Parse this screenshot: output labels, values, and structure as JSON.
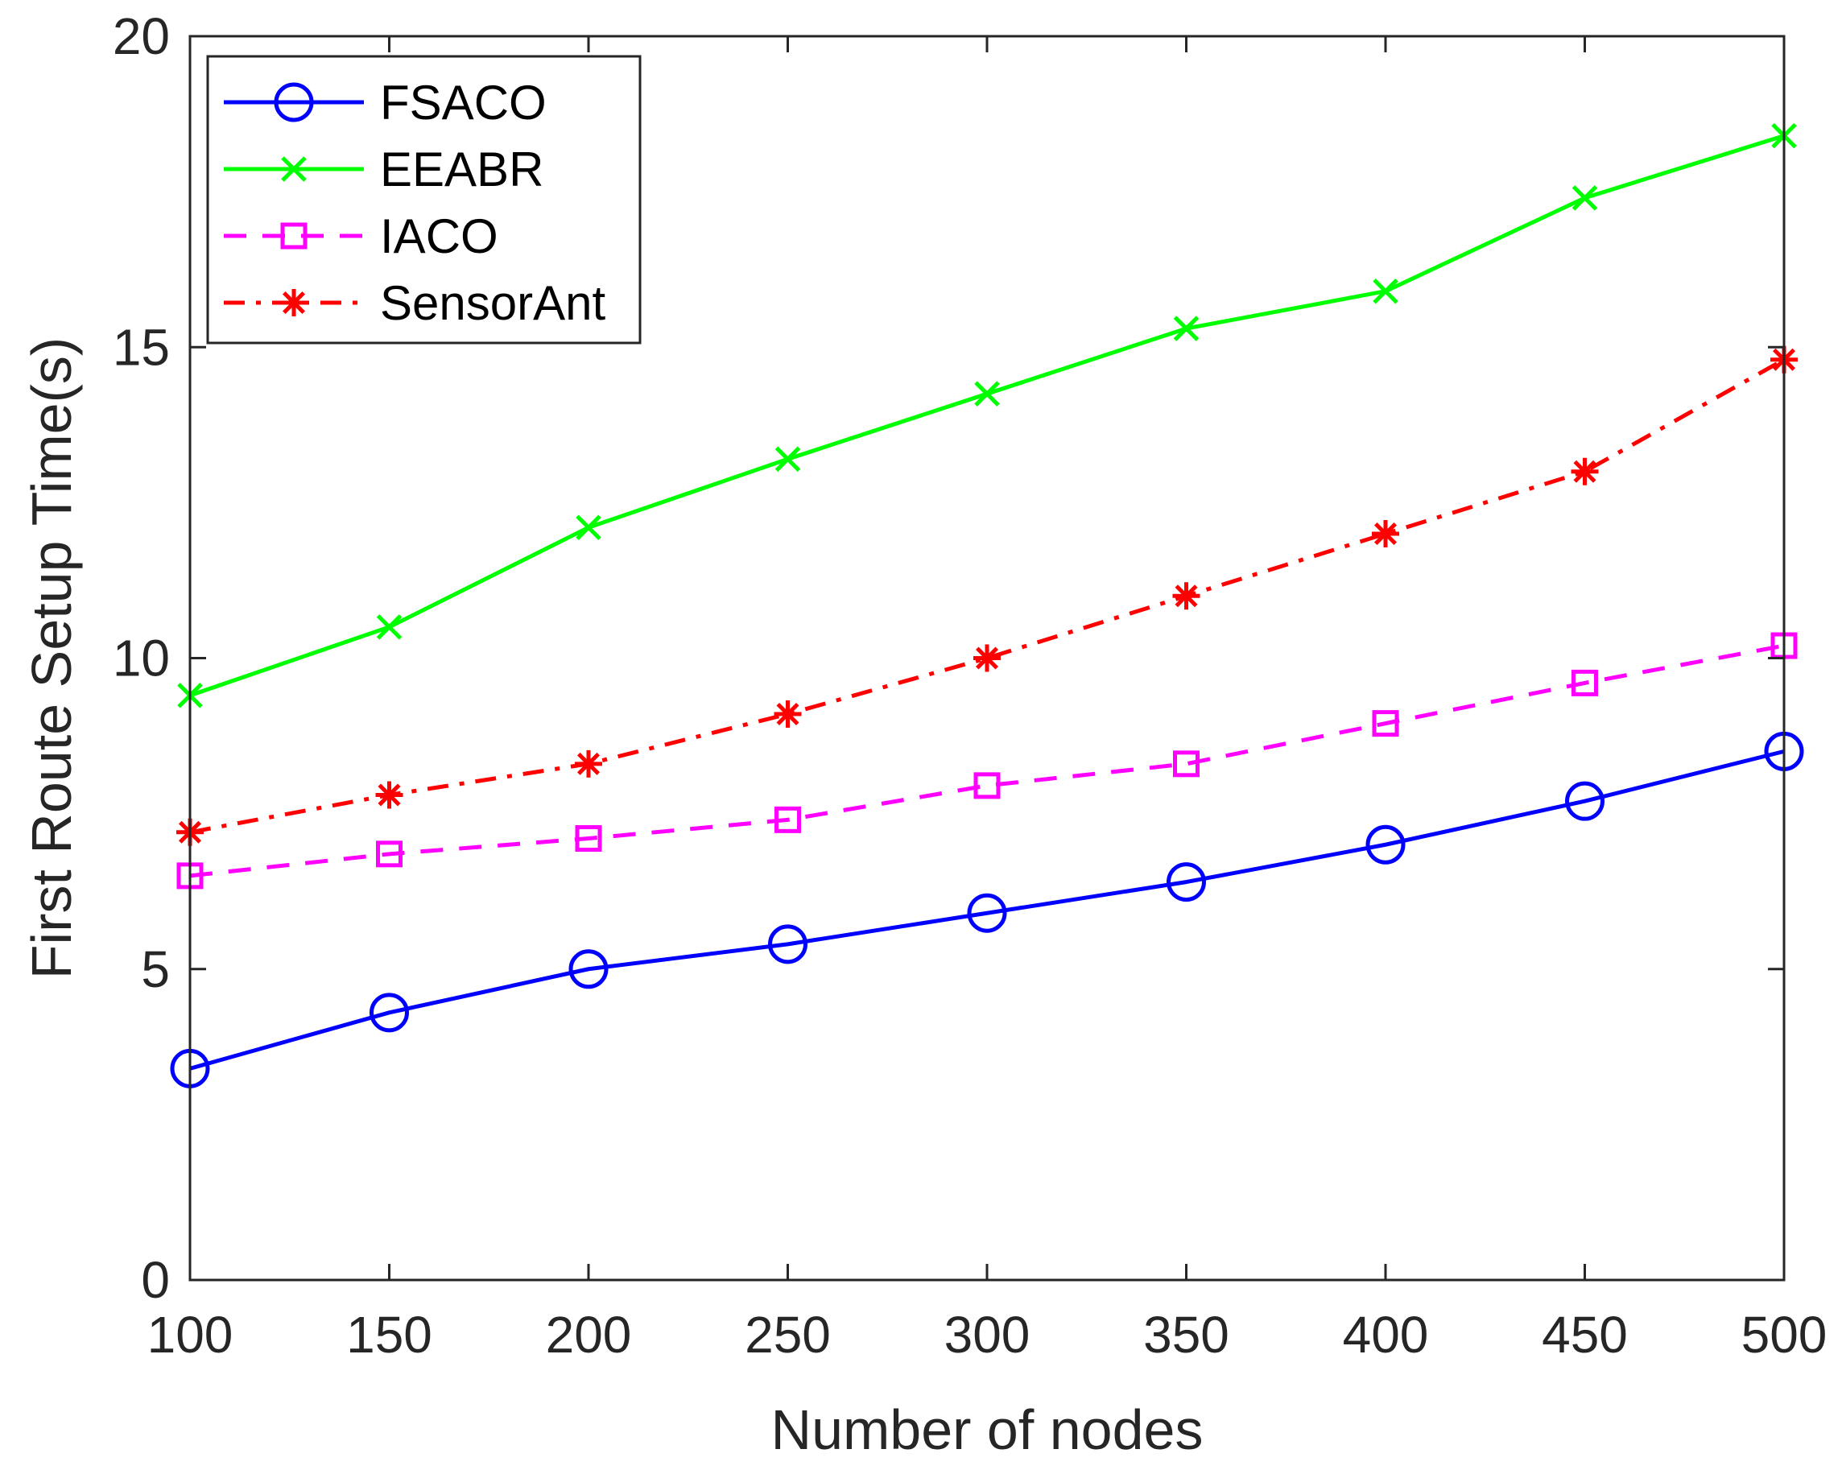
{
  "chart_data": {
    "type": "line",
    "title": "",
    "xlabel": "Number of nodes",
    "ylabel": "First Route Setup Time(s)",
    "x": [
      100,
      150,
      200,
      250,
      300,
      350,
      400,
      450,
      500
    ],
    "xlim": [
      100,
      500
    ],
    "ylim": [
      0,
      20
    ],
    "x_ticks": [
      "100",
      "150",
      "200",
      "250",
      "300",
      "350",
      "400",
      "450",
      "500"
    ],
    "y_ticks": [
      "0",
      "5",
      "10",
      "15",
      "20"
    ],
    "grid": false,
    "legend_position": "top-left",
    "series": [
      {
        "name": "FSACO",
        "color": "#0000ff",
        "marker": "circle",
        "line_style": "solid",
        "values": [
          3.4,
          4.3,
          5.0,
          5.4,
          5.9,
          6.4,
          7.0,
          7.7,
          8.5
        ]
      },
      {
        "name": "EEABR",
        "color": "#00ff00",
        "marker": "x",
        "line_style": "solid",
        "values": [
          9.4,
          10.5,
          12.1,
          13.2,
          14.25,
          15.3,
          15.9,
          17.4,
          18.4
        ]
      },
      {
        "name": "IACO",
        "color": "#ff00ff",
        "marker": "square",
        "line_style": "dashed",
        "values": [
          6.5,
          6.85,
          7.1,
          7.4,
          7.95,
          8.3,
          8.95,
          9.6,
          10.2
        ]
      },
      {
        "name": "SensorAnt",
        "color": "#ff0000",
        "marker": "asterisk",
        "line_style": "dashdot",
        "values": [
          7.2,
          7.8,
          8.3,
          9.1,
          10.0,
          11.0,
          12.0,
          13.0,
          14.8
        ]
      }
    ]
  }
}
